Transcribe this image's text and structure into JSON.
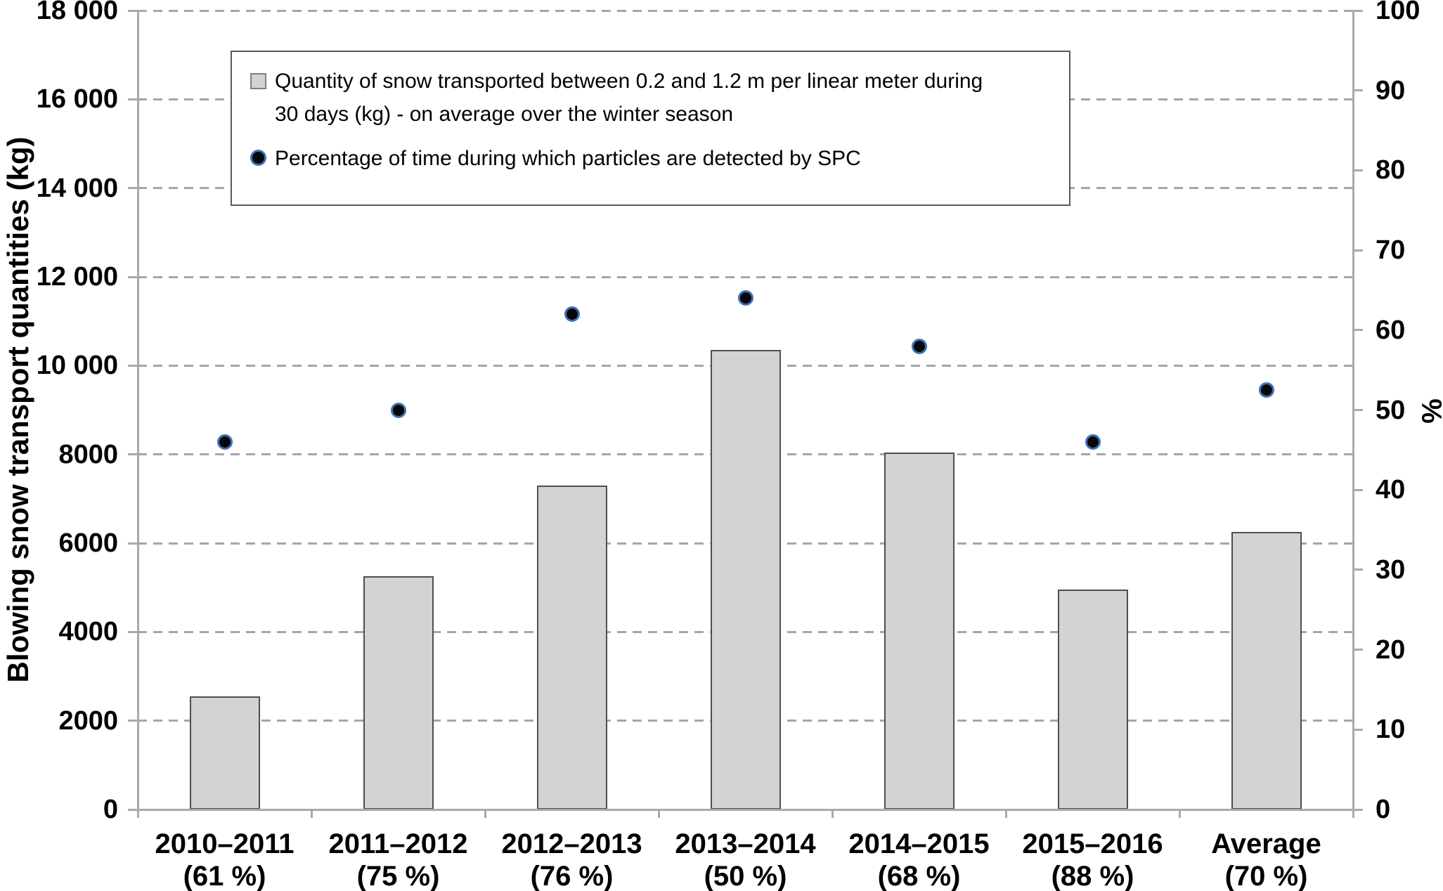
{
  "chart_data": {
    "type": "bar",
    "subtype": "combo bar + scatter, dual y-axes",
    "categories": [
      {
        "season": "2010–2011",
        "availability": "(61 %)"
      },
      {
        "season": "2011–2012",
        "availability": "(75 %)"
      },
      {
        "season": "2012–2013",
        "availability": "(76 %)"
      },
      {
        "season": "2013–2014",
        "availability": "(50 %)"
      },
      {
        "season": "2014–2015",
        "availability": "(68 %)"
      },
      {
        "season": "2015–2016",
        "availability": "(88 %)"
      },
      {
        "season": "Average",
        "availability": "(70 %)"
      }
    ],
    "series": [
      {
        "name": "Quantity of snow transported between 0.2 and 1.2 m per linear meter during\n30 days (kg) - on average over the winter season",
        "type": "bar",
        "axis": "left",
        "values": [
          2550,
          5250,
          7300,
          10350,
          8050,
          4950,
          6250
        ]
      },
      {
        "name": "Percentage of time during which particles are detected by SPC",
        "type": "scatter",
        "axis": "right",
        "values": [
          46,
          50,
          62,
          64,
          58,
          46,
          52.5
        ]
      }
    ],
    "left_axis": {
      "title": "Blowing snow transport quantities (kg)",
      "min": 0,
      "max": 18000,
      "step": 2000,
      "tick_labels": [
        "0",
        "2000",
        "4000",
        "6000",
        "8000",
        "10 000",
        "12 000",
        "14 000",
        "16 000",
        "18 000"
      ]
    },
    "right_axis": {
      "title": "%",
      "min": 0,
      "max": 100,
      "step": 10,
      "tick_labels": [
        "0",
        "10",
        "20",
        "30",
        "40",
        "50",
        "60",
        "70",
        "80",
        "90",
        "100"
      ]
    },
    "grid": "dashed horizontal gridlines at each left-axis step",
    "legend_position": "top-left inside plot area",
    "colors": {
      "bar_fill": "#d3d3d3",
      "bar_border": "#4f4f4f",
      "dot_fill": "#070707",
      "dot_ring": "#4070b8",
      "gridline": "#a6a6a6",
      "axis": "#a9a9a9",
      "text": "#000000",
      "legend_border": "#595959",
      "background": "#ffffff"
    }
  }
}
